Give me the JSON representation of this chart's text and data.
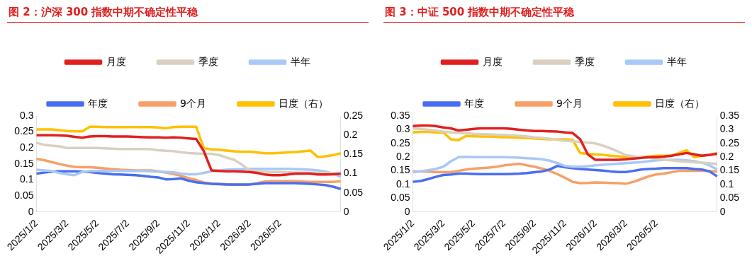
{
  "chart_data": [
    {
      "type": "line",
      "title": "图 2：沪深 300 指数中期不确定性平稳",
      "categories": [
        "2025/1/2",
        null,
        null,
        null,
        "2025/3/2",
        null,
        null,
        null,
        "2025/5/2",
        null,
        null,
        null,
        "2025/7/2",
        null,
        null,
        null,
        "2025/9/2",
        null,
        null,
        null,
        "2025/11/2",
        null,
        null,
        null,
        "2026/1/2",
        null,
        null,
        null,
        "2026/3/2",
        null,
        null,
        null,
        "2026/5/2",
        null,
        null,
        null,
        null,
        null,
        null,
        null,
        null
      ],
      "series": [
        {
          "name": "月度",
          "color": "#e02020",
          "values": [
            0.24,
            0.24,
            0.24,
            0.239,
            0.238,
            0.235,
            0.232,
            0.236,
            0.237,
            0.237,
            0.236,
            0.236,
            0.236,
            0.235,
            0.234,
            0.233,
            0.233,
            0.232,
            0.233,
            0.232,
            0.23,
            0.228,
            0.19,
            0.13,
            0.128,
            0.127,
            0.127,
            0.126,
            0.125,
            0.122,
            0.117,
            0.115,
            0.115,
            0.117,
            0.12,
            0.12,
            0.12,
            0.117,
            0.117,
            0.118,
            0.12
          ]
        },
        {
          "name": "季度",
          "color": "#d9d0c0",
          "values": [
            0.216,
            0.21,
            0.207,
            0.205,
            0.2,
            0.2,
            0.2,
            0.2,
            0.2,
            0.199,
            0.198,
            0.197,
            0.197,
            0.197,
            0.197,
            0.196,
            0.193,
            0.191,
            0.19,
            0.187,
            0.184,
            0.183,
            0.182,
            0.182,
            0.178,
            0.17,
            0.163,
            0.148,
            0.13,
            0.127,
            0.126,
            0.125,
            0.125,
            0.124,
            0.123,
            0.123,
            0.123,
            0.122,
            0.122,
            0.121,
            0.12
          ]
        },
        {
          "name": "半年",
          "color": "#a9c8f5",
          "values": [
            0.132,
            0.13,
            0.128,
            0.122,
            0.118,
            0.115,
            0.125,
            0.128,
            0.128,
            0.128,
            0.128,
            0.128,
            0.128,
            0.128,
            0.128,
            0.127,
            0.126,
            0.125,
            0.124,
            0.12,
            0.118,
            0.118,
            0.122,
            0.127,
            0.13,
            0.132,
            0.133,
            0.134,
            0.135,
            0.135,
            0.135,
            0.135,
            0.135,
            0.135,
            0.134,
            0.133,
            0.132,
            0.13,
            0.126,
            0.12,
            0.11
          ]
        },
        {
          "name": "年度",
          "color": "#4a6ef0",
          "values": [
            0.12,
            0.123,
            0.126,
            0.127,
            0.127,
            0.127,
            0.126,
            0.125,
            0.122,
            0.12,
            0.118,
            0.117,
            0.116,
            0.115,
            0.113,
            0.11,
            0.108,
            0.102,
            0.103,
            0.105,
            0.098,
            0.093,
            0.09,
            0.088,
            0.087,
            0.086,
            0.086,
            0.086,
            0.086,
            0.088,
            0.09,
            0.09,
            0.09,
            0.09,
            0.09,
            0.089,
            0.088,
            0.086,
            0.084,
            0.079,
            0.072
          ]
        },
        {
          "name": "9个月",
          "color": "#f7a066",
          "values": [
            0.166,
            0.162,
            0.156,
            0.15,
            0.145,
            0.141,
            0.14,
            0.14,
            0.138,
            0.136,
            0.134,
            0.132,
            0.131,
            0.13,
            0.13,
            0.13,
            0.127,
            0.123,
            0.119,
            0.113,
            0.106,
            0.1,
            0.092,
            0.089,
            0.088,
            0.087,
            0.085,
            0.085,
            0.086,
            0.09,
            0.095,
            0.097,
            0.097,
            0.097,
            0.096,
            0.095,
            0.094,
            0.094,
            0.094,
            0.094,
            0.096
          ]
        },
        {
          "name": "日度（右）",
          "color": "#ffc000",
          "axis": "y2",
          "values": [
            0.215,
            0.215,
            0.215,
            0.213,
            0.211,
            0.21,
            0.21,
            0.222,
            0.222,
            0.221,
            0.221,
            0.221,
            0.221,
            0.221,
            0.221,
            0.221,
            0.22,
            0.218,
            0.221,
            0.222,
            0.222,
            0.222,
            0.166,
            0.163,
            0.162,
            0.16,
            0.158,
            0.157,
            0.157,
            0.155,
            0.153,
            0.153,
            0.154,
            0.155,
            0.156,
            0.158,
            0.16,
            0.143,
            0.145,
            0.148,
            0.153
          ]
        }
      ],
      "ylim": [
        0,
        0.3
      ],
      "yticks": [
        0,
        0.05,
        0.1,
        0.15,
        0.2,
        0.25,
        0.3
      ],
      "y2lim": [
        0,
        0.25
      ],
      "y2ticks": [
        0,
        0.05,
        0.1,
        0.15,
        0.2,
        0.25
      ],
      "grid": false,
      "legend": "top",
      "marker": "none",
      "line_style": "solid"
    },
    {
      "type": "line",
      "title": "图 3：中证 500 指数中期不确定性平稳",
      "categories": [
        "2025/1/2",
        null,
        null,
        null,
        "2025/3/2",
        null,
        null,
        null,
        "2025/5/2",
        null,
        null,
        null,
        "2025/7/2",
        null,
        null,
        null,
        "2025/9/2",
        null,
        null,
        null,
        "2025/11/2",
        null,
        null,
        null,
        "2026/1/2",
        null,
        null,
        null,
        "2026/3/2",
        null,
        null,
        null,
        "2026/5/2",
        null,
        null,
        null,
        null,
        null,
        null,
        null,
        null
      ],
      "series": [
        {
          "name": "月度",
          "color": "#e02020",
          "values": [
            0.313,
            0.315,
            0.315,
            0.313,
            0.308,
            0.305,
            0.297,
            0.3,
            0.303,
            0.305,
            0.305,
            0.305,
            0.305,
            0.303,
            0.3,
            0.297,
            0.295,
            0.295,
            0.294,
            0.293,
            0.29,
            0.288,
            0.265,
            0.21,
            0.19,
            0.19,
            0.19,
            0.19,
            0.192,
            0.195,
            0.197,
            0.2,
            0.2,
            0.202,
            0.205,
            0.21,
            0.215,
            0.21,
            0.205,
            0.208,
            0.212
          ]
        },
        {
          "name": "季度",
          "color": "#d9d0c0",
          "values": [
            0.305,
            0.303,
            0.3,
            0.297,
            0.293,
            0.29,
            0.288,
            0.287,
            0.285,
            0.284,
            0.283,
            0.282,
            0.281,
            0.28,
            0.278,
            0.275,
            0.272,
            0.27,
            0.267,
            0.263,
            0.26,
            0.258,
            0.255,
            0.253,
            0.25,
            0.242,
            0.232,
            0.22,
            0.207,
            0.203,
            0.2,
            0.197,
            0.194,
            0.19,
            0.188,
            0.185,
            0.183,
            0.181,
            0.18,
            0.178,
            0.175
          ]
        },
        {
          "name": "半年",
          "color": "#a9c8f5",
          "values": [
            0.145,
            0.148,
            0.152,
            0.157,
            0.165,
            0.185,
            0.2,
            0.201,
            0.2,
            0.2,
            0.2,
            0.2,
            0.2,
            0.199,
            0.198,
            0.196,
            0.195,
            0.192,
            0.187,
            0.178,
            0.168,
            0.165,
            0.165,
            0.167,
            0.17,
            0.172,
            0.174,
            0.176,
            0.178,
            0.18,
            0.182,
            0.185,
            0.188,
            0.19,
            0.19,
            0.19,
            0.188,
            0.185,
            0.18,
            0.17,
            0.155
          ]
        },
        {
          "name": "年度",
          "color": "#4a6ef0",
          "values": [
            0.11,
            0.113,
            0.12,
            0.128,
            0.135,
            0.137,
            0.14,
            0.14,
            0.139,
            0.138,
            0.138,
            0.138,
            0.138,
            0.139,
            0.14,
            0.142,
            0.145,
            0.148,
            0.155,
            0.168,
            0.163,
            0.16,
            0.157,
            0.155,
            0.153,
            0.151,
            0.148,
            0.146,
            0.146,
            0.15,
            0.155,
            0.157,
            0.158,
            0.16,
            0.16,
            0.16,
            0.16,
            0.157,
            0.155,
            0.148,
            0.13
          ]
        },
        {
          "name": "9个月",
          "color": "#f7a066",
          "values": [
            0.148,
            0.148,
            0.147,
            0.146,
            0.145,
            0.146,
            0.15,
            0.155,
            0.158,
            0.16,
            0.162,
            0.165,
            0.17,
            0.173,
            0.176,
            0.17,
            0.165,
            0.158,
            0.15,
            0.138,
            0.125,
            0.11,
            0.105,
            0.106,
            0.108,
            0.107,
            0.106,
            0.105,
            0.103,
            0.11,
            0.12,
            0.13,
            0.137,
            0.14,
            0.145,
            0.15,
            0.15,
            0.15,
            0.15,
            0.149,
            0.148
          ]
        },
        {
          "name": "日度（右）",
          "color": "#ffc000",
          "axis": "y2",
          "values": [
            0.29,
            0.292,
            0.292,
            0.29,
            0.29,
            0.265,
            0.262,
            0.277,
            0.276,
            0.275,
            0.275,
            0.274,
            0.273,
            0.272,
            0.271,
            0.27,
            0.268,
            0.266,
            0.265,
            0.265,
            0.265,
            0.263,
            0.215,
            0.212,
            0.21,
            0.208,
            0.205,
            0.203,
            0.2,
            0.2,
            0.2,
            0.202,
            0.205,
            0.205,
            0.205,
            0.215,
            0.225,
            0.2,
            0.205,
            0.208,
            0.215
          ]
        }
      ],
      "ylim": [
        0,
        0.35
      ],
      "yticks": [
        0,
        0.05,
        0.1,
        0.15,
        0.2,
        0.25,
        0.3,
        0.35
      ],
      "y2lim": [
        0,
        0.35
      ],
      "y2ticks": [
        0,
        0.05,
        0.1,
        0.15,
        0.2,
        0.25,
        0.3,
        0.35
      ],
      "grid": false,
      "legend": "top",
      "marker": "none",
      "line_style": "solid"
    }
  ]
}
